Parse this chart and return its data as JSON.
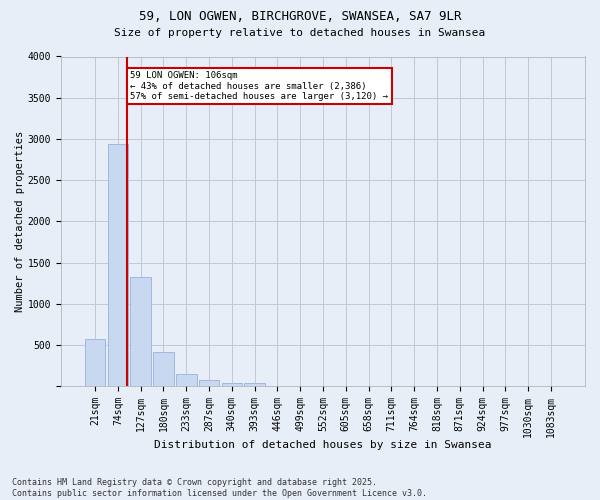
{
  "title1": "59, LON OGWEN, BIRCHGROVE, SWANSEA, SA7 9LR",
  "title2": "Size of property relative to detached houses in Swansea",
  "xlabel": "Distribution of detached houses by size in Swansea",
  "ylabel": "Number of detached properties",
  "footnote1": "Contains HM Land Registry data © Crown copyright and database right 2025.",
  "footnote2": "Contains public sector information licensed under the Open Government Licence v3.0.",
  "bin_labels": [
    "21sqm",
    "74sqm",
    "127sqm",
    "180sqm",
    "233sqm",
    "287sqm",
    "340sqm",
    "393sqm",
    "446sqm",
    "499sqm",
    "552sqm",
    "605sqm",
    "658sqm",
    "711sqm",
    "764sqm",
    "818sqm",
    "871sqm",
    "924sqm",
    "977sqm",
    "1030sqm",
    "1083sqm"
  ],
  "bar_values": [
    580,
    2940,
    1330,
    415,
    150,
    75,
    45,
    45,
    0,
    0,
    0,
    0,
    0,
    0,
    0,
    0,
    0,
    0,
    0,
    0,
    0
  ],
  "bar_color": "#c8d8f0",
  "bar_edge_color": "#a0b8e0",
  "grid_color": "#c0c8d8",
  "background_color": "#e8eef8",
  "red_line_x": 1.42,
  "annotation_text": "59 LON OGWEN: 106sqm\n← 43% of detached houses are smaller (2,386)\n57% of semi-detached houses are larger (3,120) →",
  "annotation_box_color": "#ffffff",
  "annotation_border_color": "#cc0000",
  "ylim": [
    0,
    4000
  ],
  "yticks": [
    0,
    500,
    1000,
    1500,
    2000,
    2500,
    3000,
    3500,
    4000
  ],
  "title1_fontsize": 9,
  "title2_fontsize": 8,
  "xlabel_fontsize": 8,
  "ylabel_fontsize": 7.5,
  "tick_fontsize": 7,
  "footnote_fontsize": 6
}
